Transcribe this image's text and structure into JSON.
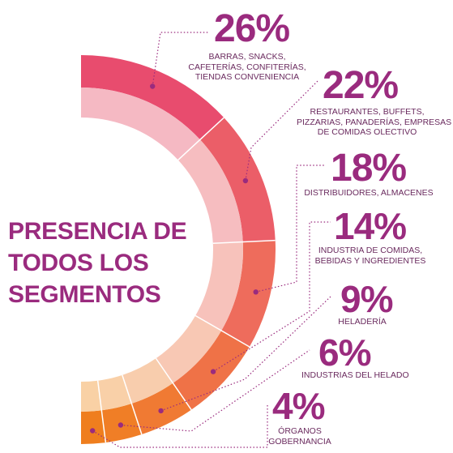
{
  "title_lines": [
    "PRESENCIA DE",
    "TODOS LOS",
    "SEGMENTOS"
  ],
  "chart_data": {
    "type": "pie",
    "style": "half-donut",
    "title": "PRESENCIA DE TODOS LOS SEGMENTOS",
    "unit": "%",
    "series": [
      {
        "value": 26,
        "value_label": "26%",
        "label_lines": [
          "BARRAS, SNACKS,",
          "CAFETERÍAS, CONFITERÍAS,",
          "TIENDAS CONVENIENCIA"
        ],
        "outer_color": "#e84c6e",
        "inner_color": "#f5b9c3"
      },
      {
        "value": 22,
        "value_label": "22%",
        "label_lines": [
          "RESTAURANTES, BUFFETS,",
          "PIZZARIAS, PANADERÍAS, EMPRESAS",
          "DE COMIDAS OLECTIVO"
        ],
        "outer_color": "#eb5e68",
        "inner_color": "#f6bdc0"
      },
      {
        "value": 18,
        "value_label": "18%",
        "label_lines": [
          "DISTRIBUIDORES, ALMACENES"
        ],
        "outer_color": "#ee6c5c",
        "inner_color": "#f7c2bb"
      },
      {
        "value": 14,
        "value_label": "14%",
        "label_lines": [
          "INDUSTRIA DE COMIDAS,",
          "BEBIDAS Y INGREDIENTES"
        ],
        "outer_color": "#ef7247",
        "inner_color": "#f8c8b4"
      },
      {
        "value": 9,
        "value_label": "9%",
        "label_lines": [
          "HELADERÍA"
        ],
        "outer_color": "#f07a33",
        "inner_color": "#f8cdad"
      },
      {
        "value": 6,
        "value_label": "6%",
        "label_lines": [
          "INDUSTRIAS DEL HELADO"
        ],
        "outer_color": "#f07e26",
        "inner_color": "#f9d0a8"
      },
      {
        "value": 4,
        "value_label": "4%",
        "label_lines": [
          "ÓRGANOS",
          "GOBERNANCIA"
        ],
        "outer_color": "#ef7e1e",
        "inner_color": "#f9d1a5"
      }
    ]
  },
  "colors": {
    "title": "#9a2b7e",
    "value": "#9a2b7e",
    "label": "#6a2a5e",
    "leader": "#9a2b7e",
    "separator": "#ffffff"
  }
}
